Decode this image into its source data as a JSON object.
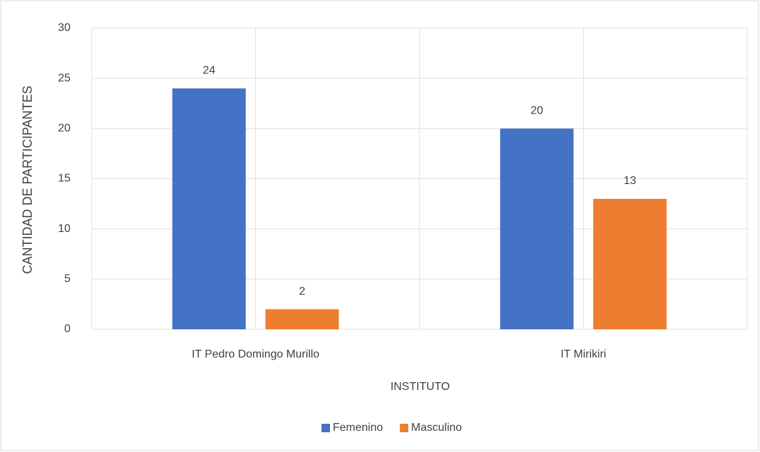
{
  "chart_data": {
    "type": "bar",
    "categories": [
      "IT Pedro Domingo Murillo",
      "IT Mirikiri"
    ],
    "series": [
      {
        "name": "Femenino",
        "color": "#4472c4",
        "values": [
          24,
          20
        ]
      },
      {
        "name": "Masculino",
        "color": "#ed7d31",
        "values": [
          2,
          13
        ]
      }
    ],
    "x_label": "INSTITUTO",
    "y_label": "CANTIDAD DE PARTICIPANTES",
    "ylim": [
      0,
      30
    ],
    "yticks": [
      0,
      5,
      10,
      15,
      20,
      25,
      30
    ],
    "grid": true,
    "legend": "bottom"
  }
}
